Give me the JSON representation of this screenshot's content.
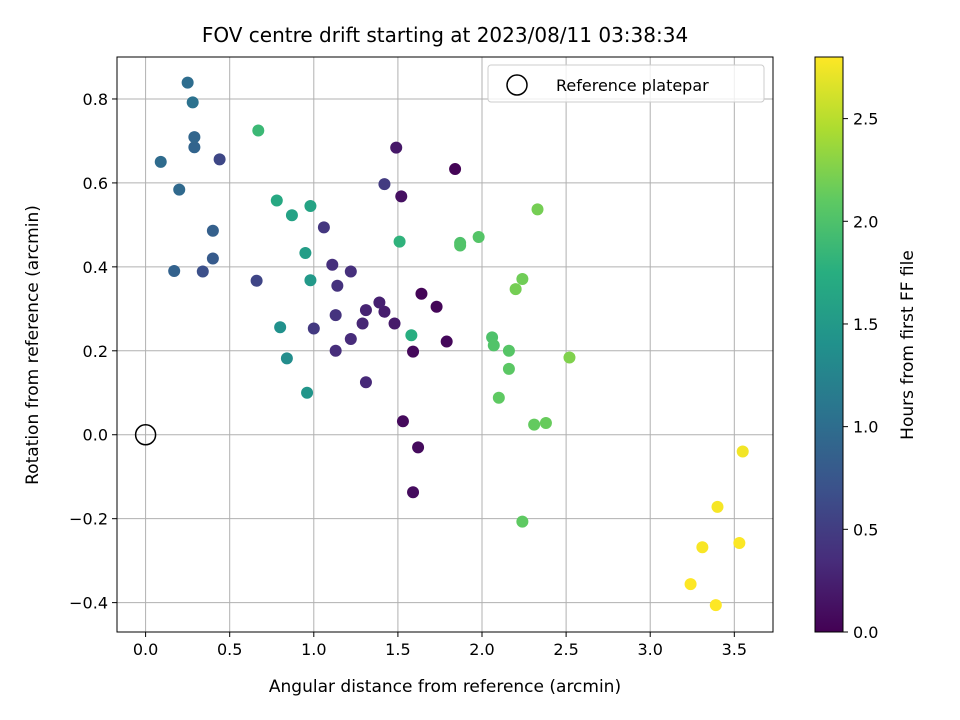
{
  "chart_data": {
    "type": "scatter",
    "title": "FOV centre drift starting at 2023/08/11 03:38:34",
    "xlabel": "Angular distance from reference (arcmin)",
    "ylabel": "Rotation from reference (arcmin)",
    "xlim": [
      -0.17,
      3.73
    ],
    "ylim": [
      -0.47,
      0.9
    ],
    "xticks": [
      0.0,
      0.5,
      1.0,
      1.5,
      2.0,
      2.5,
      3.0,
      3.5
    ],
    "xtick_labels": [
      "0.0",
      "0.5",
      "1.0",
      "1.5",
      "2.0",
      "2.5",
      "3.0",
      "3.5"
    ],
    "yticks": [
      -0.4,
      -0.2,
      0.0,
      0.2,
      0.4,
      0.6,
      0.8
    ],
    "ytick_labels": [
      "−0.4",
      "−0.2",
      "0.0",
      "0.2",
      "0.4",
      "0.6",
      "0.8"
    ],
    "grid": true,
    "colormap": "viridis",
    "colorbar": {
      "label": "Hours from first FF file",
      "range": [
        0.0,
        2.8
      ],
      "ticks": [
        0.0,
        0.5,
        1.0,
        1.5,
        2.0,
        2.5
      ],
      "tick_labels": [
        "0.0",
        "0.5",
        "1.0",
        "1.5",
        "2.0",
        "2.5"
      ]
    },
    "legend": {
      "label": "Reference platepar",
      "location": "top-right"
    },
    "reference_point": {
      "x": 0.0,
      "y": 0.0
    },
    "points": [
      {
        "x": 1.84,
        "y": 0.633,
        "c": 0.02
      },
      {
        "x": 1.64,
        "y": 0.336,
        "c": 0.03
      },
      {
        "x": 1.73,
        "y": 0.305,
        "c": 0.04
      },
      {
        "x": 1.79,
        "y": 0.222,
        "c": 0.05
      },
      {
        "x": 1.59,
        "y": 0.198,
        "c": 0.06
      },
      {
        "x": 1.53,
        "y": 0.032,
        "c": 0.07
      },
      {
        "x": 1.62,
        "y": -0.03,
        "c": 0.08
      },
      {
        "x": 1.59,
        "y": -0.137,
        "c": 0.09
      },
      {
        "x": 1.52,
        "y": 0.568,
        "c": 0.12
      },
      {
        "x": 1.49,
        "y": 0.684,
        "c": 0.18
      },
      {
        "x": 1.48,
        "y": 0.265,
        "c": 0.2
      },
      {
        "x": 1.42,
        "y": 0.293,
        "c": 0.22
      },
      {
        "x": 1.39,
        "y": 0.315,
        "c": 0.25
      },
      {
        "x": 1.31,
        "y": 0.297,
        "c": 0.27
      },
      {
        "x": 1.29,
        "y": 0.265,
        "c": 0.3
      },
      {
        "x": 1.31,
        "y": 0.125,
        "c": 0.32
      },
      {
        "x": 1.22,
        "y": 0.228,
        "c": 0.34
      },
      {
        "x": 1.13,
        "y": 0.2,
        "c": 0.36
      },
      {
        "x": 1.11,
        "y": 0.405,
        "c": 0.38
      },
      {
        "x": 1.22,
        "y": 0.389,
        "c": 0.38
      },
      {
        "x": 1.14,
        "y": 0.355,
        "c": 0.4
      },
      {
        "x": 1.13,
        "y": 0.285,
        "c": 0.42
      },
      {
        "x": 1.06,
        "y": 0.494,
        "c": 0.44
      },
      {
        "x": 1.0,
        "y": 0.253,
        "c": 0.46
      },
      {
        "x": 1.42,
        "y": 0.597,
        "c": 0.48
      },
      {
        "x": 0.66,
        "y": 0.367,
        "c": 0.58
      },
      {
        "x": 0.44,
        "y": 0.656,
        "c": 0.6
      },
      {
        "x": 0.34,
        "y": 0.389,
        "c": 0.68
      },
      {
        "x": 0.4,
        "y": 0.42,
        "c": 0.8
      },
      {
        "x": 0.4,
        "y": 0.486,
        "c": 0.85
      },
      {
        "x": 0.17,
        "y": 0.39,
        "c": 0.88
      },
      {
        "x": 0.29,
        "y": 0.685,
        "c": 0.9
      },
      {
        "x": 0.29,
        "y": 0.709,
        "c": 0.92
      },
      {
        "x": 0.2,
        "y": 0.584,
        "c": 0.95
      },
      {
        "x": 0.09,
        "y": 0.65,
        "c": 0.97
      },
      {
        "x": 0.25,
        "y": 0.839,
        "c": 1.0
      },
      {
        "x": 0.28,
        "y": 0.792,
        "c": 1.05
      },
      {
        "x": 0.84,
        "y": 0.182,
        "c": 1.35
      },
      {
        "x": 0.8,
        "y": 0.256,
        "c": 1.4
      },
      {
        "x": 0.96,
        "y": 0.1,
        "c": 1.45
      },
      {
        "x": 0.98,
        "y": 0.368,
        "c": 1.5
      },
      {
        "x": 0.95,
        "y": 0.433,
        "c": 1.55
      },
      {
        "x": 0.87,
        "y": 0.523,
        "c": 1.6
      },
      {
        "x": 0.98,
        "y": 0.545,
        "c": 1.62
      },
      {
        "x": 0.78,
        "y": 0.558,
        "c": 1.68
      },
      {
        "x": 1.58,
        "y": 0.237,
        "c": 1.75
      },
      {
        "x": 1.51,
        "y": 0.46,
        "c": 1.8
      },
      {
        "x": 0.67,
        "y": 0.725,
        "c": 1.88
      },
      {
        "x": 2.06,
        "y": 0.232,
        "c": 2.0
      },
      {
        "x": 2.07,
        "y": 0.213,
        "c": 2.02
      },
      {
        "x": 2.16,
        "y": 0.2,
        "c": 2.05
      },
      {
        "x": 2.16,
        "y": 0.157,
        "c": 2.08
      },
      {
        "x": 2.1,
        "y": 0.088,
        "c": 2.1
      },
      {
        "x": 2.31,
        "y": 0.024,
        "c": 2.12
      },
      {
        "x": 2.38,
        "y": 0.028,
        "c": 2.14
      },
      {
        "x": 2.24,
        "y": -0.207,
        "c": 2.1
      },
      {
        "x": 1.87,
        "y": 0.457,
        "c": 2.0
      },
      {
        "x": 1.87,
        "y": 0.451,
        "c": 2.02
      },
      {
        "x": 1.98,
        "y": 0.471,
        "c": 2.04
      },
      {
        "x": 2.24,
        "y": 0.371,
        "c": 2.18
      },
      {
        "x": 2.2,
        "y": 0.347,
        "c": 2.2
      },
      {
        "x": 2.33,
        "y": 0.537,
        "c": 2.2
      },
      {
        "x": 2.52,
        "y": 0.184,
        "c": 2.25
      },
      {
        "x": 3.55,
        "y": -0.04,
        "c": 2.75
      },
      {
        "x": 3.4,
        "y": -0.172,
        "c": 2.77
      },
      {
        "x": 3.31,
        "y": -0.268,
        "c": 2.78
      },
      {
        "x": 3.53,
        "y": -0.258,
        "c": 2.79
      },
      {
        "x": 3.24,
        "y": -0.356,
        "c": 2.8
      },
      {
        "x": 3.39,
        "y": -0.406,
        "c": 2.8
      }
    ]
  }
}
